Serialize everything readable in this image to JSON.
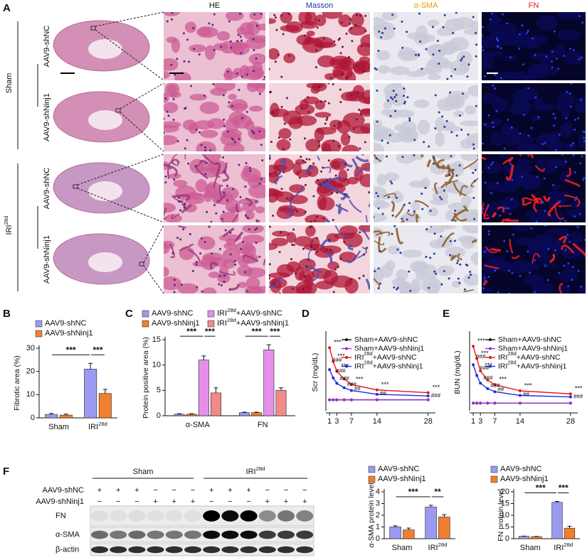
{
  "panel_labels": [
    "A",
    "B",
    "C",
    "D",
    "E",
    "F"
  ],
  "panel_a": {
    "columns": [
      "HE",
      "Masson",
      "α-SMA",
      "FN"
    ],
    "groups": [
      "Sham",
      "IRI28d"
    ],
    "rows": [
      "AAV9-shNC",
      "AAV9-shNinj1",
      "AAV9-shNC",
      "AAV9-shNinj1"
    ]
  },
  "panel_f": {
    "groups": [
      "Sham",
      "IRI28d"
    ],
    "treatments": [
      {
        "name": "AAV9-shNC",
        "signs": [
          "+",
          "+",
          "+",
          "−",
          "−",
          "−",
          "+",
          "+",
          "+",
          "−",
          "−",
          "−"
        ]
      },
      {
        "name": "AAV9-shNinj1",
        "signs": [
          "−",
          "−",
          "−",
          "+",
          "+",
          "+",
          "−",
          "−",
          "−",
          "+",
          "+",
          "+"
        ]
      }
    ],
    "blots": [
      "FN",
      "α-SMA",
      "β-actin"
    ]
  },
  "chart_data": [
    {
      "type": "bar",
      "ylabel": "Fibrotic area (%)",
      "categories": [
        "Sham",
        "IRI28d"
      ],
      "series": [
        {
          "name": "AAV9-shNC",
          "color": "#9a9af0",
          "values": [
            1.5,
            21
          ],
          "errors": [
            0.4,
            2.5
          ]
        },
        {
          "name": "AAV9-shNinj1",
          "color": "#f07f30",
          "values": [
            1.2,
            10.5
          ],
          "errors": [
            0.4,
            1.8
          ]
        }
      ],
      "ylim": [
        0,
        30
      ],
      "yticks": [
        0,
        10,
        20,
        30
      ],
      "comparisons": [
        "***",
        "***"
      ]
    },
    {
      "type": "bar",
      "ylabel": "Protein positive area (%)",
      "categories": [
        "α-SMA",
        "FN"
      ],
      "series": [
        {
          "name": "AAV9-shNC",
          "color": "#9a9af0",
          "values": [
            0.3,
            0.6
          ],
          "errors": [
            0.1,
            0.1
          ]
        },
        {
          "name": "AAV9-shNinj1",
          "color": "#f07f30",
          "values": [
            0.3,
            0.6
          ],
          "errors": [
            0.1,
            0.1
          ]
        },
        {
          "name": "IRI28d+AAV9-shNC",
          "color": "#e58fe8",
          "values": [
            11,
            13
          ],
          "errors": [
            0.8,
            1.0
          ]
        },
        {
          "name": "IRI28d+AAV9-shNinj1",
          "color": "#f28a8a",
          "values": [
            4.5,
            5
          ],
          "errors": [
            1.0,
            0.5
          ]
        }
      ],
      "ylim": [
        0,
        15
      ],
      "yticks": [
        0,
        5,
        10,
        15
      ],
      "comparisons": [
        [
          "***",
          "***"
        ],
        [
          "***",
          "***"
        ]
      ]
    },
    {
      "type": "line",
      "ylabel": "Scr (mg/dL)",
      "x": [
        1,
        2,
        3,
        5,
        7,
        14,
        28
      ],
      "xlim": [
        0,
        30
      ],
      "xticks": [
        1,
        3,
        7,
        14,
        28
      ],
      "ylim": [
        0,
        1.4
      ],
      "series": [
        {
          "name": "Sham+AAV9-shNC",
          "color": "#111111",
          "values": [
            0.2,
            0.2,
            0.2,
            0.2,
            0.2,
            0.2,
            0.2
          ]
        },
        {
          "name": "Sham+AAV9-shNinj1",
          "color": "#9b30d0",
          "values": [
            0.2,
            0.2,
            0.2,
            0.2,
            0.2,
            0.2,
            0.2
          ]
        },
        {
          "name": "IRI28d+AAV9-shNC",
          "color": "#e8141e",
          "values": [
            1.15,
            0.9,
            0.72,
            0.58,
            0.48,
            0.38,
            0.33
          ]
        },
        {
          "name": "IRI28d+AAV9-shNinj1",
          "color": "#1f2ed8",
          "values": [
            0.75,
            0.6,
            0.5,
            0.42,
            0.37,
            0.3,
            0.27
          ]
        }
      ],
      "significance": [
        "***",
        "***",
        "***",
        null,
        "***",
        "***",
        "***"
      ],
      "significance_2": [
        "###",
        "###",
        "###",
        "###",
        "##",
        "##",
        "###"
      ]
    },
    {
      "type": "line",
      "ylabel": "BUN (mg/dL)",
      "x": [
        1,
        2,
        3,
        5,
        7,
        14,
        28
      ],
      "xlim": [
        0,
        30
      ],
      "xticks": [
        1,
        3,
        7,
        14,
        28
      ],
      "ylim": [
        0,
        250
      ],
      "series": [
        {
          "name": "Sham+AAV9-shNC",
          "color": "#111111",
          "values": [
            25,
            25,
            25,
            25,
            25,
            25,
            25
          ]
        },
        {
          "name": "Sham+AAV9-shNinj1",
          "color": "#9b30d0",
          "values": [
            25,
            25,
            25,
            25,
            25,
            25,
            25
          ]
        },
        {
          "name": "IRI28d+AAV9-shNC",
          "color": "#e8141e",
          "values": [
            210,
            170,
            130,
            100,
            85,
            65,
            55
          ]
        },
        {
          "name": "IRI28d+AAV9-shNinj1",
          "color": "#1f2ed8",
          "values": [
            150,
            115,
            90,
            72,
            62,
            50,
            45
          ]
        }
      ],
      "significance": [
        "***",
        "***",
        "***",
        null,
        "***",
        "***",
        "***"
      ],
      "significance_2": [
        "###",
        "###",
        "###",
        "###",
        "##",
        "##",
        "###"
      ]
    },
    {
      "type": "bar",
      "ylabel": "α-SMA protein level",
      "categories": [
        "Sham",
        "IRI28d"
      ],
      "series": [
        {
          "name": "AAV9-shNC",
          "color": "#9a9af0",
          "values": [
            1.0,
            2.7
          ],
          "errors": [
            0.1,
            0.15
          ]
        },
        {
          "name": "AAV9-shNinj1",
          "color": "#f07f30",
          "values": [
            0.75,
            1.85
          ],
          "errors": [
            0.15,
            0.2
          ]
        }
      ],
      "ylim": [
        0,
        4
      ],
      "yticks": [
        0,
        1,
        2,
        3,
        4
      ],
      "comparisons": [
        "***",
        "**"
      ]
    },
    {
      "type": "bar",
      "ylabel": "FN protein level",
      "categories": [
        "Sham",
        "IRI28d"
      ],
      "series": [
        {
          "name": "AAV9-shNC",
          "color": "#9a9af0",
          "values": [
            1.0,
            15.5
          ],
          "errors": [
            0.1,
            0.4
          ]
        },
        {
          "name": "AAV9-shNinj1",
          "color": "#f07f30",
          "values": [
            0.9,
            4.5
          ],
          "errors": [
            0.1,
            0.8
          ]
        }
      ],
      "ylim": [
        0,
        20
      ],
      "yticks": [
        0,
        5,
        10,
        15,
        20
      ],
      "comparisons": [
        "***",
        "***"
      ]
    }
  ]
}
